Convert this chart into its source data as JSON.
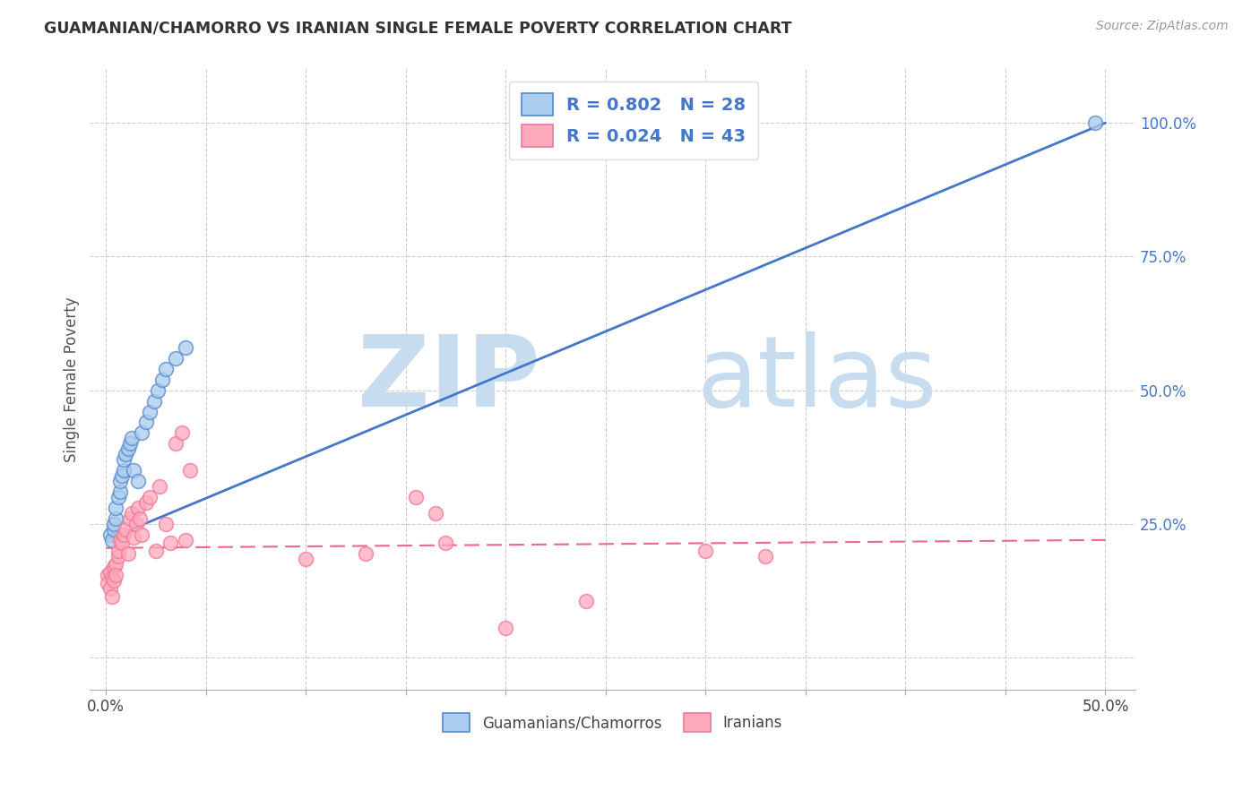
{
  "title": "GUAMANIAN/CHAMORRO VS IRANIAN SINGLE FEMALE POVERTY CORRELATION CHART",
  "source": "Source: ZipAtlas.com",
  "ylabel": "Single Female Poverty",
  "x_ticks": [
    0.0,
    0.05,
    0.1,
    0.15,
    0.2,
    0.25,
    0.3,
    0.35,
    0.4,
    0.45,
    0.5
  ],
  "x_tick_labels_show": [
    "0.0%",
    "",
    "",
    "",
    "",
    "",
    "",
    "",
    "",
    "",
    "50.0%"
  ],
  "y_ticks": [
    0.0,
    0.25,
    0.5,
    0.75,
    1.0
  ],
  "y_tick_labels": [
    "",
    "25.0%",
    "50.0%",
    "75.0%",
    "100.0%"
  ],
  "xlim": [
    -0.008,
    0.515
  ],
  "ylim": [
    -0.06,
    1.1
  ],
  "legend1_label": "R = 0.802   N = 28",
  "legend2_label": "R = 0.024   N = 43",
  "legend_bottom_label1": "Guamanians/Chamorros",
  "legend_bottom_label2": "Iranians",
  "blue_fill": "#AACCEE",
  "blue_edge": "#5588CC",
  "pink_fill": "#FFAABB",
  "pink_edge": "#EE7799",
  "blue_line_color": "#4477CC",
  "pink_line_color": "#EE6688",
  "background_color": "#FFFFFF",
  "grid_color": "#CCCCCC",
  "blue_scatter_x": [
    0.002,
    0.003,
    0.004,
    0.004,
    0.005,
    0.005,
    0.006,
    0.007,
    0.007,
    0.008,
    0.009,
    0.009,
    0.01,
    0.011,
    0.012,
    0.013,
    0.014,
    0.016,
    0.018,
    0.02,
    0.022,
    0.024,
    0.026,
    0.028,
    0.03,
    0.035,
    0.04,
    0.495
  ],
  "blue_scatter_y": [
    0.23,
    0.22,
    0.24,
    0.25,
    0.26,
    0.28,
    0.3,
    0.31,
    0.33,
    0.34,
    0.35,
    0.37,
    0.38,
    0.39,
    0.4,
    0.41,
    0.35,
    0.33,
    0.42,
    0.44,
    0.46,
    0.48,
    0.5,
    0.52,
    0.54,
    0.56,
    0.58,
    1.0
  ],
  "pink_scatter_x": [
    0.001,
    0.001,
    0.002,
    0.002,
    0.003,
    0.003,
    0.004,
    0.004,
    0.005,
    0.005,
    0.006,
    0.006,
    0.007,
    0.008,
    0.009,
    0.01,
    0.011,
    0.012,
    0.013,
    0.014,
    0.015,
    0.016,
    0.017,
    0.018,
    0.02,
    0.022,
    0.025,
    0.027,
    0.03,
    0.032,
    0.035,
    0.038,
    0.04,
    0.042,
    0.1,
    0.13,
    0.155,
    0.165,
    0.17,
    0.2,
    0.24,
    0.3,
    0.33
  ],
  "pink_scatter_y": [
    0.155,
    0.14,
    0.16,
    0.13,
    0.15,
    0.115,
    0.17,
    0.145,
    0.175,
    0.155,
    0.19,
    0.2,
    0.22,
    0.215,
    0.23,
    0.24,
    0.195,
    0.26,
    0.27,
    0.225,
    0.25,
    0.28,
    0.26,
    0.23,
    0.29,
    0.3,
    0.2,
    0.32,
    0.25,
    0.215,
    0.4,
    0.42,
    0.22,
    0.35,
    0.185,
    0.195,
    0.3,
    0.27,
    0.215,
    0.055,
    0.105,
    0.2,
    0.19
  ],
  "blue_line_x": [
    0.0,
    0.5
  ],
  "blue_line_y": [
    0.22,
    1.0
  ],
  "pink_line_x": [
    0.0,
    0.5
  ],
  "pink_line_y": [
    0.205,
    0.22
  ]
}
